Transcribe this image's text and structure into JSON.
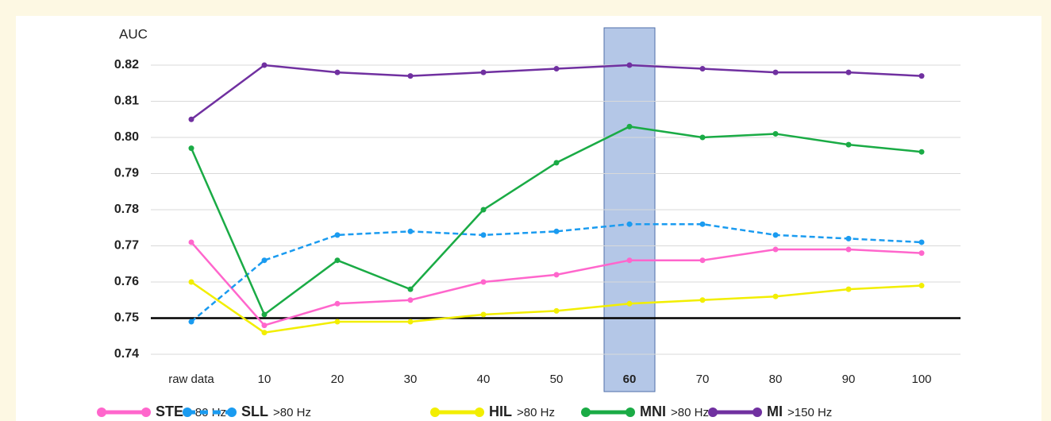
{
  "chart_data": {
    "type": "line",
    "y_axis_label": "AUC",
    "categories": [
      "raw data",
      "10",
      "20",
      "30",
      "40",
      "50",
      "60",
      "70",
      "80",
      "90",
      "100"
    ],
    "ylim": [
      0.74,
      0.82
    ],
    "yticks": [
      0.74,
      0.75,
      0.76,
      0.77,
      0.78,
      0.79,
      {
        "value": 0.8,
        "label": "0.80"
      },
      0.81,
      0.82
    ],
    "grid": true,
    "reference_line": 0.75,
    "highlight_index": 6,
    "series": [
      {
        "name": "STE",
        "band": ">80 Hz",
        "color": "#ff66cc",
        "dashed": false,
        "values": [
          0.771,
          0.748,
          0.754,
          0.755,
          0.76,
          0.762,
          0.766,
          0.766,
          0.769,
          0.769,
          0.768
        ]
      },
      {
        "name": "SLL",
        "band": ">80 Hz",
        "color": "#1a9bf0",
        "dashed": true,
        "values": [
          0.749,
          0.766,
          0.773,
          0.774,
          0.773,
          0.774,
          0.776,
          0.776,
          0.773,
          0.772,
          0.771
        ]
      },
      {
        "name": "HIL",
        "band": ">80 Hz",
        "color": "#f2ee00",
        "dashed": false,
        "values": [
          0.76,
          0.746,
          0.749,
          0.749,
          0.751,
          0.752,
          0.754,
          0.755,
          0.756,
          0.758,
          0.759
        ]
      },
      {
        "name": "MNI",
        "band": ">80 Hz",
        "color": "#1aab45",
        "dashed": false,
        "values": [
          0.797,
          0.751,
          0.766,
          0.758,
          0.78,
          0.793,
          0.803,
          0.8,
          0.801,
          0.798,
          0.796
        ]
      },
      {
        "name": "MI",
        "band": ">150 Hz",
        "color": "#7030a0",
        "dashed": false,
        "values": [
          0.805,
          0.82,
          0.818,
          0.817,
          0.818,
          0.819,
          0.82,
          0.819,
          0.818,
          0.818,
          0.817
        ]
      }
    ]
  }
}
